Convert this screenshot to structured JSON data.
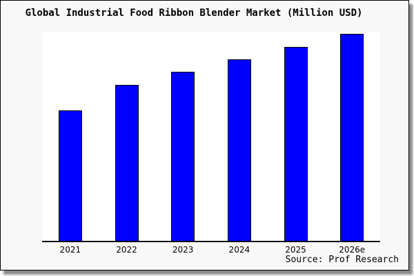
{
  "frame": {
    "background_color": "#f8f8f8",
    "border_color": "#000000",
    "shadow_color": "#8a8a8a"
  },
  "title": "Global Industrial Food Ribbon Blender Market (Million USD)",
  "source_note": "Source: Prof Research",
  "chart_data": {
    "type": "bar",
    "title": "Global Industrial Food Ribbon Blender Market (Million USD)",
    "xlabel": "",
    "ylabel": "",
    "categories": [
      "2021",
      "2022",
      "2023",
      "2024",
      "2025",
      "2026e"
    ],
    "values": [
      63.1,
      75.2,
      81.5,
      87.7,
      93.8,
      100
    ],
    "ylim": [
      0,
      101
    ],
    "y_axis_labels_visible": false,
    "gridlines": false,
    "legend": null,
    "bar_fill_color": "#0000ff",
    "bar_border_color": "#000000",
    "plot_background": "#ffffff",
    "axis_line_color": "#000000",
    "source": "Source: Prof Research"
  }
}
